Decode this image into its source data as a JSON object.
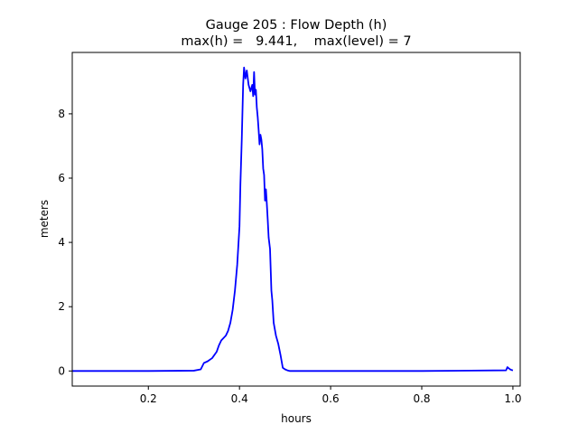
{
  "chart_data": {
    "type": "line",
    "title_line1": "Gauge 205 : Flow Depth (h)",
    "title_line2": "max(h) =   9.441,    max(level) = 7",
    "xlabel": "hours",
    "ylabel": "meters",
    "xlim": [
      0.033,
      1.016
    ],
    "ylim": [
      -0.47,
      9.91
    ],
    "xticks": [
      {
        "value": 0.2,
        "label": "0.2"
      },
      {
        "value": 0.4,
        "label": "0.4"
      },
      {
        "value": 0.6,
        "label": "0.6"
      },
      {
        "value": 0.8,
        "label": "0.8"
      },
      {
        "value": 1.0,
        "label": "1.0"
      }
    ],
    "yticks": [
      {
        "value": 0,
        "label": "0"
      },
      {
        "value": 2,
        "label": "2"
      },
      {
        "value": 4,
        "label": "4"
      },
      {
        "value": 6,
        "label": "6"
      },
      {
        "value": 8,
        "label": "8"
      }
    ],
    "grid": false,
    "series": [
      {
        "color": "#0000ff",
        "x": [
          0.033,
          0.2,
          0.3,
          0.315,
          0.322,
          0.33,
          0.34,
          0.35,
          0.355,
          0.36,
          0.37,
          0.375,
          0.38,
          0.385,
          0.39,
          0.395,
          0.4,
          0.402,
          0.405,
          0.408,
          0.41,
          0.413,
          0.416,
          0.42,
          0.424,
          0.428,
          0.43,
          0.432,
          0.434,
          0.436,
          0.438,
          0.44,
          0.442,
          0.444,
          0.446,
          0.448,
          0.45,
          0.452,
          0.454,
          0.456,
          0.458,
          0.46,
          0.462,
          0.464,
          0.467,
          0.47,
          0.472,
          0.475,
          0.48,
          0.485,
          0.49,
          0.495,
          0.5,
          0.505,
          0.51,
          0.52,
          0.6,
          0.8,
          0.985,
          0.988,
          0.991,
          0.994,
          0.997,
          1.0
        ],
        "y": [
          0.0,
          0.0,
          0.01,
          0.05,
          0.25,
          0.3,
          0.4,
          0.6,
          0.8,
          0.95,
          1.1,
          1.25,
          1.5,
          1.9,
          2.5,
          3.3,
          4.5,
          5.8,
          7.2,
          8.9,
          9.44,
          9.1,
          9.35,
          8.9,
          8.7,
          8.9,
          8.55,
          9.3,
          8.6,
          8.75,
          8.2,
          7.9,
          7.5,
          7.05,
          7.35,
          7.2,
          6.9,
          6.3,
          6.1,
          5.3,
          5.65,
          5.2,
          4.7,
          4.15,
          3.8,
          2.5,
          2.2,
          1.5,
          1.1,
          0.85,
          0.5,
          0.1,
          0.05,
          0.02,
          0.0,
          0.0,
          0.0,
          0.0,
          0.02,
          0.12,
          0.08,
          0.05,
          0.03,
          0.02
        ]
      }
    ]
  }
}
